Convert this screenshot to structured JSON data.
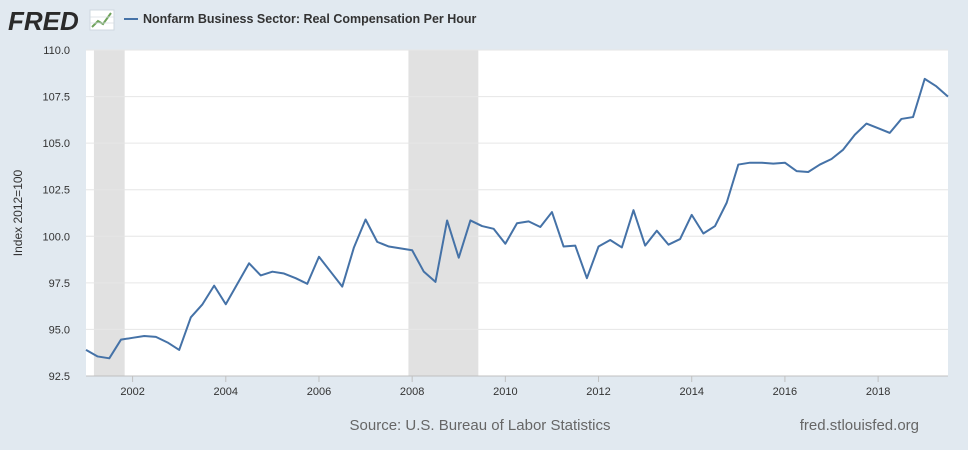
{
  "brand": {
    "logo_text": "FRED",
    "series_color": "#4572a7",
    "recession_color": "#e1e1e1",
    "background": "#e1e9f0"
  },
  "legend": {
    "label": "Nonfarm Business Sector: Real Compensation Per Hour"
  },
  "footer": {
    "source": "Source: U.S. Bureau of Labor Statistics",
    "site": "fred.stlouisfed.org"
  },
  "chart_data": {
    "type": "line",
    "title": "",
    "xlabel": "",
    "ylabel": "Index 2012=100",
    "xlim": [
      2001.0,
      2019.5
    ],
    "ylim": [
      92.5,
      110.0
    ],
    "y_ticks": [
      92.5,
      95.0,
      97.5,
      100.0,
      102.5,
      105.0,
      107.5,
      110.0
    ],
    "y_tick_labels": [
      "92.5",
      "95.0",
      "97.5",
      "100.0",
      "102.5",
      "105.0",
      "107.5",
      "110.0"
    ],
    "x_ticks": [
      2002,
      2004,
      2006,
      2008,
      2010,
      2012,
      2014,
      2016,
      2018
    ],
    "x_tick_labels": [
      "2002",
      "2004",
      "2006",
      "2008",
      "2010",
      "2012",
      "2014",
      "2016",
      "2018"
    ],
    "grid": true,
    "recessions": [
      [
        2001.17,
        2001.83
      ],
      [
        2007.92,
        2009.42
      ]
    ],
    "series": [
      {
        "name": "Nonfarm Business Sector: Real Compensation Per Hour",
        "x": [
          2001.0,
          2001.25,
          2001.5,
          2001.75,
          2002.0,
          2002.25,
          2002.5,
          2002.75,
          2003.0,
          2003.25,
          2003.5,
          2003.75,
          2004.0,
          2004.25,
          2004.5,
          2004.75,
          2005.0,
          2005.25,
          2005.5,
          2005.75,
          2006.0,
          2006.25,
          2006.5,
          2006.75,
          2007.0,
          2007.25,
          2007.5,
          2007.75,
          2008.0,
          2008.25,
          2008.5,
          2008.75,
          2009.0,
          2009.25,
          2009.5,
          2009.75,
          2010.0,
          2010.25,
          2010.5,
          2010.75,
          2011.0,
          2011.25,
          2011.5,
          2011.75,
          2012.0,
          2012.25,
          2012.5,
          2012.75,
          2013.0,
          2013.25,
          2013.5,
          2013.75,
          2014.0,
          2014.25,
          2014.5,
          2014.75,
          2015.0,
          2015.25,
          2015.5,
          2015.75,
          2016.0,
          2016.25,
          2016.5,
          2016.75,
          2017.0,
          2017.25,
          2017.5,
          2017.75,
          2018.0,
          2018.25,
          2018.5,
          2018.75,
          2019.0,
          2019.25,
          2019.5
        ],
        "values": [
          93.9,
          93.55,
          93.45,
          94.45,
          94.55,
          94.65,
          94.6,
          94.3,
          93.9,
          95.65,
          96.35,
          97.35,
          96.35,
          97.45,
          98.55,
          97.9,
          98.1,
          98.0,
          97.75,
          97.45,
          98.9,
          98.1,
          97.3,
          99.4,
          100.9,
          99.7,
          99.45,
          99.35,
          99.25,
          98.1,
          97.55,
          100.85,
          98.85,
          100.85,
          100.55,
          100.4,
          99.6,
          100.7,
          100.8,
          100.5,
          101.3,
          99.45,
          99.5,
          97.75,
          99.45,
          99.8,
          99.4,
          101.4,
          99.5,
          100.3,
          99.55,
          99.85,
          101.15,
          100.15,
          100.55,
          101.8,
          103.85,
          103.95,
          103.95,
          103.9,
          103.95,
          103.5,
          103.45,
          103.85,
          104.15,
          104.65,
          105.45,
          106.05,
          105.8,
          105.55,
          106.3,
          106.4,
          108.45,
          108.05,
          107.5
        ]
      }
    ]
  }
}
